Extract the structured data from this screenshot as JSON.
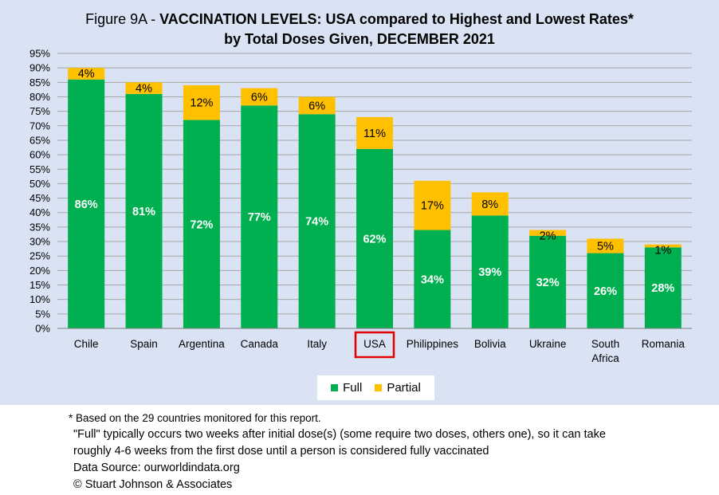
{
  "title": {
    "line1_prefix": "Figure 9A - ",
    "line1_bold": "VACCINATION LEVELS:  USA compared to Highest and Lowest Rates*",
    "line2": "by Total Doses Given, DECEMBER 2021"
  },
  "chart_data": {
    "type": "bar",
    "stacked": true,
    "categories": [
      "Chile",
      "Spain",
      "Argentina",
      "Canada",
      "Italy",
      "USA",
      "Philippines",
      "Bolivia",
      "Ukraine",
      "South Africa",
      "Romania"
    ],
    "series": [
      {
        "name": "Full",
        "color": "#00b050",
        "values": [
          86,
          81,
          72,
          77,
          74,
          62,
          34,
          39,
          32,
          26,
          28
        ]
      },
      {
        "name": "Partial",
        "color": "#ffc000",
        "values": [
          4,
          4,
          12,
          6,
          6,
          11,
          17,
          8,
          2,
          5,
          1
        ]
      }
    ],
    "ylim": [
      0,
      95
    ],
    "ytick_step": 5,
    "ytick_format": "percent",
    "grid": true,
    "highlight_category": "USA",
    "highlight_color": "#e00000",
    "legend_position": "bottom"
  },
  "legend": {
    "full_label": "Full",
    "partial_label": "Partial",
    "full_color": "#00b050",
    "partial_color": "#ffc000"
  },
  "footnotes": {
    "note1": "* Based on the 29 countries monitored for this report.",
    "note2": "\"Full\" typically occurs two weeks after initial dose(s) (some require two doses, others one),  so it can take",
    "note3": "roughly 4-6 weeks from the first dose until a person is considered fully vaccinated",
    "note4": "Data Source:  ourworldindata.org",
    "note5": "© Stuart Johnson & Associates"
  }
}
